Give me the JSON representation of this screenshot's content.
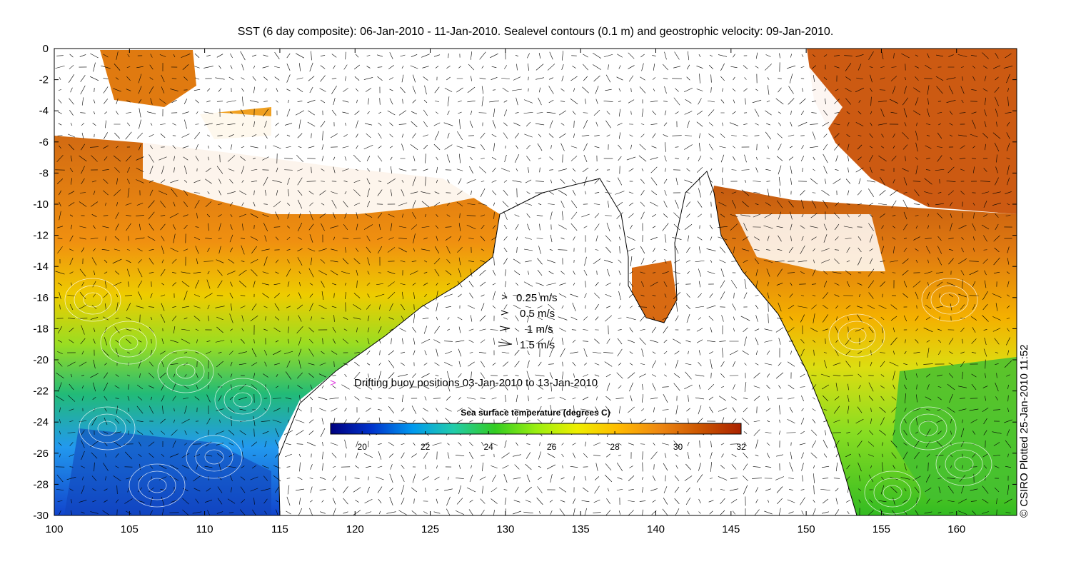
{
  "title": "SST (6 day composite): 06-Jan-2010 - 11-Jan-2010. Sealevel contours (0.1 m) and geostrophic velocity: 09-Jan-2010.",
  "credit": "© CSIRO Plotted 25-Jan-2010 11:52",
  "map": {
    "lon_range": [
      100,
      164
    ],
    "lat_range": [
      -30,
      0
    ],
    "x_ticks": [
      "100",
      "105",
      "110",
      "115",
      "120",
      "125",
      "130",
      "135",
      "140",
      "145",
      "150",
      "155",
      "160"
    ],
    "y_ticks": [
      "0",
      "-2",
      "-4",
      "-6",
      "-8",
      "-10",
      "-12",
      "-14",
      "-16",
      "-18",
      "-20",
      "-22",
      "-24",
      "-26",
      "-28",
      "-30"
    ]
  },
  "velocity_legend": [
    {
      "label": "0.25 m/s",
      "speed": 0.25
    },
    {
      "label": "0.5 m/s",
      "speed": 0.5
    },
    {
      "label": "1 m/s",
      "speed": 1
    },
    {
      "label": "1.5 m/s",
      "speed": 1.5
    }
  ],
  "buoy_legend": {
    "label": "Drifting buoy positions 03-Jan-2010 to 13-Jan-2010",
    "marker": ">",
    "color": "#e040e0"
  },
  "colorbar": {
    "title": "Sea surface temperature (degrees C)",
    "range": [
      19,
      32
    ],
    "ticks": [
      "20",
      "22",
      "24",
      "26",
      "28",
      "30",
      "32"
    ],
    "colors": [
      "#00007f",
      "#0033cc",
      "#0099ee",
      "#22ccaa",
      "#33cc22",
      "#99ee11",
      "#eeee00",
      "#ffbb00",
      "#ee8811",
      "#cc5500",
      "#aa2200"
    ]
  }
}
